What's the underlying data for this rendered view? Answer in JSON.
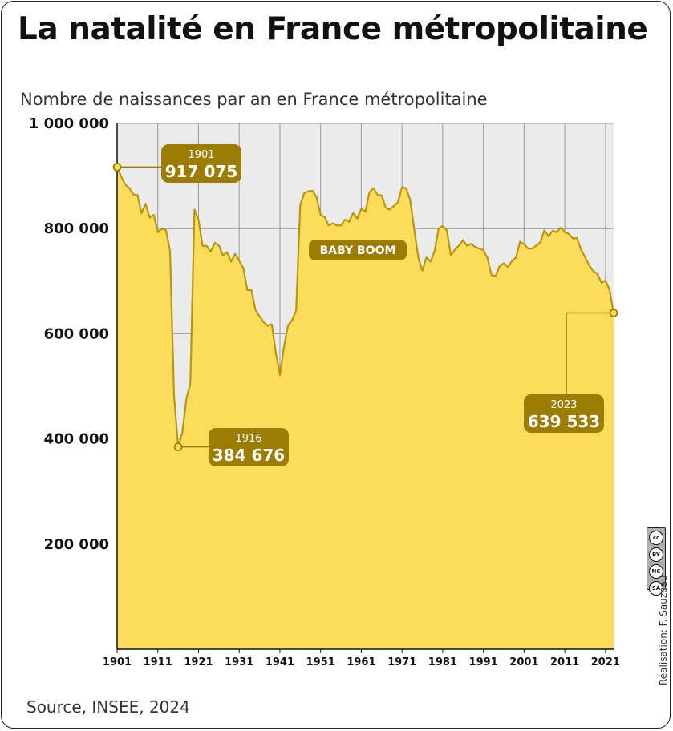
{
  "header": {
    "title": "La natalité en France métropolitaine",
    "subtitle": "Nombre de naissances par an en France métropolitaine"
  },
  "footer": {
    "source": "Source, INSEE, 2024",
    "credit": "Réalisation: F. Sauzeau",
    "license_icon": "creative-commons-by-nc-sa-icon"
  },
  "colors": {
    "fill": "#fddc5c",
    "line": "#b8960e",
    "callout": "#9c7d04",
    "plot_bg": "#ebebeb",
    "grid": "#999999"
  },
  "chart_data": {
    "type": "area",
    "title": "La natalité en France métropolitaine",
    "ylabel": "Nombre de naissances par an en France métropolitaine",
    "xlabel": "",
    "xlim": [
      1901,
      2023
    ],
    "ylim": [
      0,
      1000000
    ],
    "grid": true,
    "x_ticks": [
      1901,
      1911,
      1921,
      1931,
      1941,
      1951,
      1961,
      1971,
      1981,
      1991,
      2001,
      2011,
      2021
    ],
    "y_ticks": [
      {
        "value": 0,
        "label": ""
      },
      {
        "value": 200000,
        "label": "200 000"
      },
      {
        "value": 400000,
        "label": "400 000"
      },
      {
        "value": 600000,
        "label": "600 000"
      },
      {
        "value": 800000,
        "label": "800 000"
      },
      {
        "value": 1000000,
        "label": "1 000 000"
      }
    ],
    "x": [
      1901,
      1902,
      1903,
      1904,
      1905,
      1906,
      1907,
      1908,
      1909,
      1910,
      1911,
      1912,
      1913,
      1914,
      1915,
      1916,
      1917,
      1918,
      1919,
      1920,
      1921,
      1922,
      1923,
      1924,
      1925,
      1926,
      1927,
      1928,
      1929,
      1930,
      1931,
      1932,
      1933,
      1934,
      1935,
      1936,
      1937,
      1938,
      1939,
      1940,
      1941,
      1942,
      1943,
      1944,
      1945,
      1946,
      1947,
      1948,
      1949,
      1950,
      1951,
      1952,
      1953,
      1954,
      1955,
      1956,
      1957,
      1958,
      1959,
      1960,
      1961,
      1962,
      1963,
      1964,
      1965,
      1966,
      1967,
      1968,
      1969,
      1970,
      1971,
      1972,
      1973,
      1974,
      1975,
      1976,
      1977,
      1978,
      1979,
      1980,
      1981,
      1982,
      1983,
      1984,
      1985,
      1986,
      1987,
      1988,
      1989,
      1990,
      1991,
      1992,
      1993,
      1994,
      1995,
      1996,
      1997,
      1998,
      1999,
      2000,
      2001,
      2002,
      2003,
      2004,
      2005,
      2006,
      2007,
      2008,
      2009,
      2010,
      2011,
      2012,
      2013,
      2014,
      2015,
      2016,
      2017,
      2018,
      2019,
      2020,
      2021,
      2022,
      2023
    ],
    "values": [
      917075,
      899000,
      884000,
      877000,
      865000,
      864000,
      829000,
      847000,
      821000,
      826000,
      793000,
      800000,
      797000,
      757000,
      482000,
      384676,
      411000,
      476000,
      506000,
      836000,
      817000,
      767000,
      767000,
      756000,
      773000,
      768000,
      749000,
      755000,
      737000,
      752000,
      739000,
      725000,
      683000,
      683000,
      645000,
      633000,
      622000,
      615000,
      618000,
      564000,
      521000,
      575000,
      616000,
      626000,
      644000,
      845000,
      868000,
      871000,
      872000,
      860000,
      826000,
      822000,
      806000,
      810000,
      806000,
      806000,
      817000,
      813000,
      830000,
      819000,
      838000,
      832000,
      869000,
      877000,
      864000,
      863000,
      840000,
      836000,
      843000,
      850000,
      879000,
      877000,
      855000,
      799000,
      745000,
      720000,
      745000,
      737000,
      757000,
      800000,
      805000,
      797000,
      749000,
      760000,
      768000,
      778000,
      767000,
      771000,
      765000,
      762000,
      759000,
      744000,
      711000,
      710000,
      729000,
      734000,
      727000,
      738000,
      745000,
      775000,
      770000,
      762000,
      762000,
      768000,
      774000,
      797000,
      785000,
      796000,
      793000,
      802000,
      793000,
      790000,
      781000,
      782000,
      760000,
      745000,
      730000,
      719000,
      714000,
      697000,
      701000,
      684000,
      639533
    ],
    "annotations": [
      {
        "year": "1901",
        "value": "917 075",
        "x": 1901,
        "y": 917075
      },
      {
        "year": "1916",
        "value": "384 676",
        "x": 1916,
        "y": 384676
      },
      {
        "year": "2023",
        "value": "639 533",
        "x": 2023,
        "y": 639533
      },
      {
        "text": "BABY BOOM"
      }
    ]
  }
}
